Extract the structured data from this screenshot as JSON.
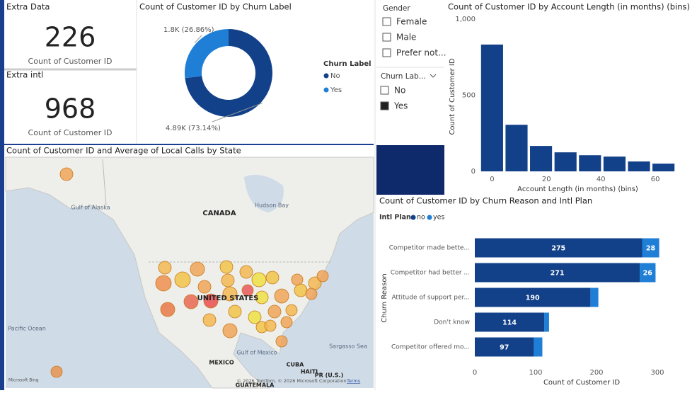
{
  "cards": [
    {
      "title": "Extra Data",
      "value": 226,
      "label": "Count of Customer ID"
    },
    {
      "title": "Extra intl",
      "value": 968,
      "label": "Count of Customer ID"
    }
  ],
  "slicers": [
    {
      "title": "Gender",
      "items": [
        "Female",
        "Male",
        "Prefer not..."
      ],
      "checked": [
        false,
        false,
        false
      ]
    },
    {
      "title": "Churn Lab...",
      "items": [
        "No",
        "Yes"
      ],
      "checked": [
        false,
        true
      ]
    }
  ],
  "map": {
    "title": "Count of Customer ID and Average of Local Calls by State",
    "labels": [
      "CANADA",
      "UNITED STATES",
      "Hudson Bay",
      "Gulf of Alaska",
      "Pacific Ocean",
      "Gulf of Mexico",
      "MEXICO",
      "CUBA",
      "HAITI",
      "PR (U.S.)",
      "Sargasso Sea",
      "GUATEMALA"
    ],
    "attribution": "© 2026 TomTom, © 2026 Microsoft Corporation",
    "terms": "Terms",
    "logo": "Microsoft Bing"
  },
  "chart_data": [
    {
      "type": "pie",
      "donut": true,
      "title": "Count of Customer ID by Churn Label",
      "legend_title": "Churn Label",
      "categories": [
        "No",
        "Yes"
      ],
      "values": [
        4891,
        1796
      ],
      "value_labels": [
        "4.89K (73.14%)",
        "1.8K (26.86%)"
      ],
      "colors": [
        "#12418a",
        "#1f7fd6"
      ]
    },
    {
      "type": "bar",
      "title": "Count of Customer ID by Account Length (in months) (bins)",
      "x": [
        0,
        9,
        18,
        27,
        36,
        45,
        54,
        63
      ],
      "values": [
        833,
        306,
        167,
        125,
        106,
        97,
        65,
        51
      ],
      "color": "#12418a",
      "xlabel": "Account Length (in months) (bins)",
      "ylabel": "Count of Customer ID",
      "xlim": [
        -4,
        67
      ],
      "xticks": [
        0,
        20,
        40,
        60
      ],
      "ylim": [
        0,
        1000
      ],
      "yticks": [
        0,
        500,
        {
          "value": 1000,
          "label": "1,000"
        }
      ],
      "grid": false
    },
    {
      "type": "stacked_bar",
      "orientation": "horizontal",
      "title": "Count of Customer ID by Churn Reason and Intl Plan",
      "legend_title": "Intl Plan",
      "categories": [
        "Competitor made bette...",
        "Competitor had better ...",
        "Attitude of support per...",
        "Don't know",
        "Competitor offered mo..."
      ],
      "series": [
        {
          "name": "no",
          "color": "#12418a",
          "values": [
            275,
            271,
            190,
            114,
            97
          ]
        },
        {
          "name": "yes",
          "color": "#1f7fd6",
          "values": [
            28,
            26,
            13,
            8,
            14
          ]
        }
      ],
      "xlabel": "Count of Customer ID",
      "ylabel": "Churn Reason",
      "xlim": [
        0,
        330
      ],
      "xticks": [
        0,
        100,
        200,
        300
      ],
      "data_labels": true
    }
  ]
}
